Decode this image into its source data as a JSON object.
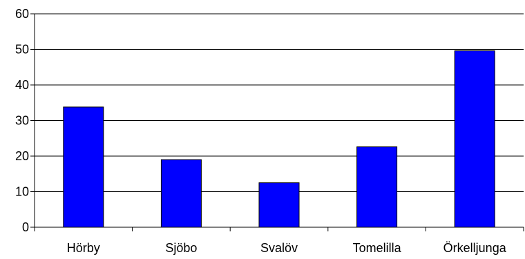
{
  "chart_data": {
    "type": "bar",
    "categories": [
      "Hörby",
      "Sjöbo",
      "Svalöv",
      "Tomelilla",
      "Örkelljunga"
    ],
    "values": [
      33.8,
      19.0,
      12.5,
      22.6,
      49.6
    ],
    "ylim": [
      0,
      60
    ],
    "yticks": [
      "0",
      "10",
      "20",
      "30",
      "40",
      "50",
      "60"
    ],
    "grid": true,
    "title": "",
    "xlabel": "",
    "ylabel": "",
    "colors": {
      "bar": "#0000ff",
      "bar_stroke": "#000000",
      "grid": "#000000",
      "axis": "#000000"
    }
  }
}
